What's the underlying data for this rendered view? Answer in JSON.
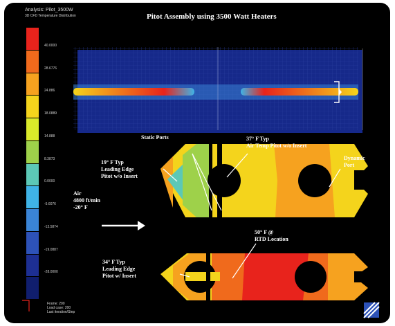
{
  "header": {
    "analysis": "Analysis: Pilot_3500W",
    "subtitle": "3D CFD Temperature Distribution",
    "title": "Pitot Assembly using 3500 Watt Heaters"
  },
  "legend": {
    "colors": [
      "#e8231c",
      "#f06a1c",
      "#f6a21f",
      "#f4d41c",
      "#d9e92a",
      "#9ed14a",
      "#5cc8b6",
      "#3fb3e6",
      "#3a84d6",
      "#2d52b8",
      "#1d2f93",
      "#101e6e"
    ],
    "values": [
      "40.0000",
      "28.6776",
      "24.886",
      "18.0889",
      "14.888",
      "8.3873",
      "0.0000",
      "-5.6076",
      "-13.5874",
      "-19.0887",
      "-28.0000"
    ]
  },
  "annotations": {
    "static_ports": "Static Ports",
    "leading_edge_no_insert": "19° F Typ\nLeading Edge\nPitot w/o Insert",
    "air_temp": "37° F Typ\nAir Temp Pitot w/o Insert",
    "dynamic_port": "Dynamic\nPort",
    "air_flow": "Air\n4800 ft/min\n-20° F",
    "rtd": "50° F @\nRTD Location",
    "leading_edge_insert": "34° F Typ\nLeading Edge\nPitot w/ Insert"
  },
  "footer": {
    "info": "Frame: 200\nLoad case: 200\nLast iteration/Step"
  },
  "colors": {
    "background": "#000000",
    "hot": "#e8231c",
    "warm": "#f6a21f",
    "cool": "#3fb3e6",
    "cold": "#16298a"
  }
}
